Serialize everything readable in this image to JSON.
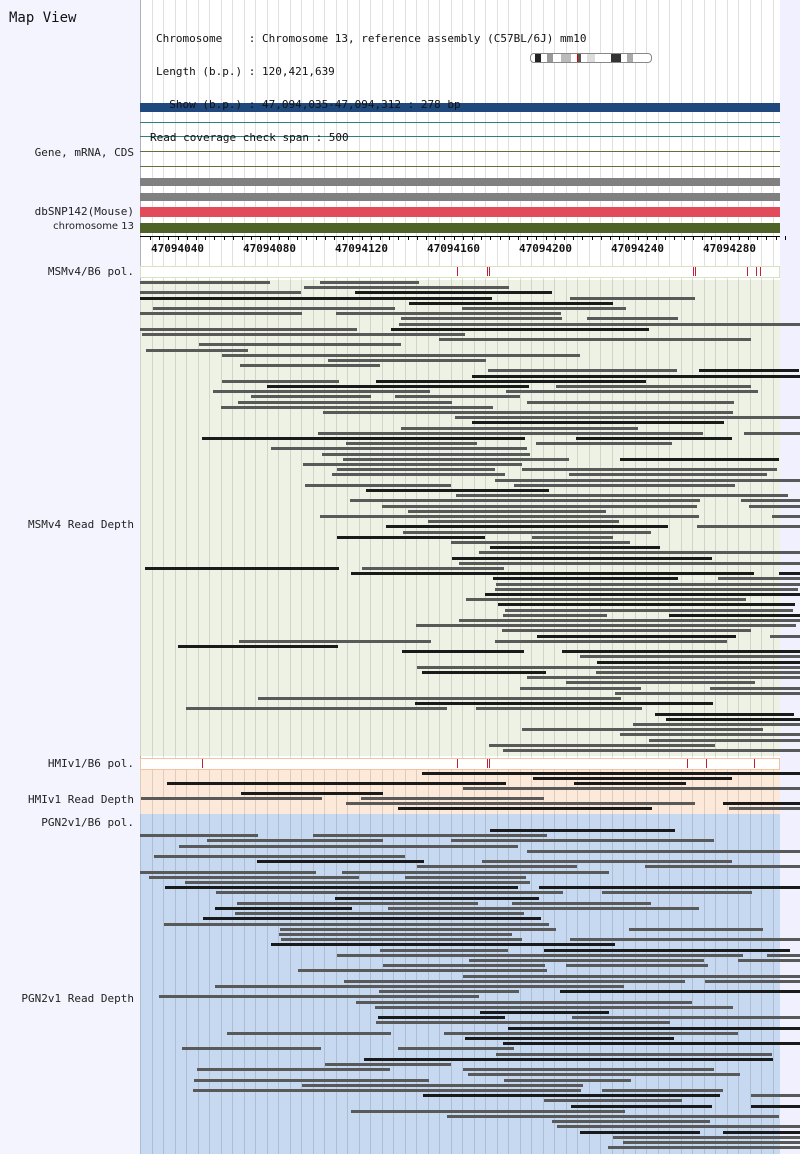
{
  "title": "Map View",
  "header": {
    "lines": [
      "Chromosome    : Chromosome 13, reference assembly (C57BL/6J) mm10",
      "Length (b.p.) : 120,421,639",
      "  Show (b.p.) : 47,094,035-47,094,312 : 278 bp",
      "Read coverage check span : 500"
    ]
  },
  "tracks": {
    "gene": "Gene, mRNA, CDS",
    "dbsnp": "dbSNP142(Mouse)",
    "chrom": "chromosome 13",
    "msm_pol": "MSMv4/B6 pol.",
    "msm_depth": "MSMv4 Read Depth",
    "hmi_pol": "HMIv1/B6 pol.",
    "hmi_depth": "HMIv1 Read Depth",
    "pgn_pol": "PGN2v1/B6 pol.",
    "pgn_depth": "PGN2v1 Read Depth"
  },
  "ruler": {
    "ticks": [
      "47094040",
      "47094080",
      "47094120",
      "47094160",
      "47094200",
      "47094240",
      "47094280"
    ]
  },
  "colors": {
    "gene_bar": "#1f497d",
    "dbsnp_bar": "#e24b5a",
    "chrom_bar": "#4f6228",
    "msm_bg": "#eef2e4",
    "hmi_bg": "#fde9d9",
    "pgn_bg": "#c6d9f0",
    "read_dark": "#1a1a1a",
    "read_gray": "#595959"
  }
}
